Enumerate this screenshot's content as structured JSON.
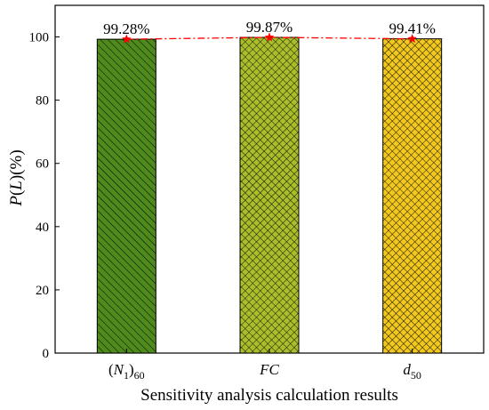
{
  "chart_data": {
    "type": "bar",
    "categories": [
      "(N1)60",
      "FC",
      "d50"
    ],
    "category_labels": [
      {
        "pre": "(",
        "main": "N",
        "sub1": "1",
        "post": ")",
        "sub2": "60"
      },
      {
        "pre": "",
        "main": "FC",
        "sub1": "",
        "post": "",
        "sub2": ""
      },
      {
        "pre": "",
        "main": "d",
        "sub1": "50",
        "post": "",
        "sub2": ""
      }
    ],
    "values": [
      99.28,
      99.87,
      99.41
    ],
    "data_labels": [
      "99.28%",
      "99.87%",
      "99.41%"
    ],
    "bar_colors": [
      "#4f8a1c",
      "#aabd2a",
      "#f2c81e"
    ],
    "bar_patterns": [
      "diagonal",
      "crosshatch",
      "crosshatch"
    ],
    "line_overlay": {
      "color": "#ff0000",
      "style": "dash-dot",
      "marker": "star"
    },
    "xlabel": "Sensitivity analysis calculation results",
    "ylabel": "P(L)(%)",
    "ylabel_parts": {
      "p": "P",
      "l": "L",
      "rest": "(%)"
    },
    "ylim": [
      0,
      110
    ],
    "yticks": [
      0,
      20,
      40,
      60,
      80,
      100
    ],
    "grid": false,
    "legend": "none"
  }
}
